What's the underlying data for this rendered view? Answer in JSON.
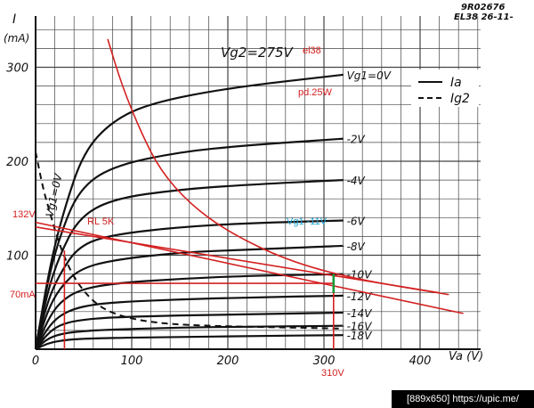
{
  "chart_data": {
    "type": "line",
    "header": {
      "code": "9R02676",
      "sheet": "EL38  26-11-"
    },
    "y_axis": {
      "symbol": "I",
      "unit": "(mA)",
      "ticks": [
        100,
        200,
        300
      ],
      "range": [
        0,
        330
      ]
    },
    "x_axis": {
      "label": "Va (V)",
      "ticks": [
        0,
        100,
        200,
        300,
        400
      ],
      "range": [
        0,
        450
      ]
    },
    "condition": "Vg2=275V",
    "legend": [
      {
        "label": "Ia",
        "style": "solid"
      },
      {
        "label": "Ig2",
        "style": "dashed"
      }
    ],
    "series": [
      {
        "name": "Vg1=0V",
        "points": [
          [
            0,
            0
          ],
          [
            15,
            90
          ],
          [
            30,
            150
          ],
          [
            50,
            210
          ],
          [
            80,
            243
          ],
          [
            120,
            262
          ],
          [
            200,
            278
          ],
          [
            320,
            292
          ]
        ]
      },
      {
        "name": "-2V",
        "points": [
          [
            0,
            0
          ],
          [
            12,
            70
          ],
          [
            25,
            120
          ],
          [
            45,
            170
          ],
          [
            80,
            195
          ],
          [
            150,
            210
          ],
          [
            220,
            217
          ],
          [
            320,
            224
          ]
        ]
      },
      {
        "name": "-4V",
        "points": [
          [
            0,
            0
          ],
          [
            12,
            60
          ],
          [
            25,
            100
          ],
          [
            45,
            140
          ],
          [
            80,
            160
          ],
          [
            150,
            170
          ],
          [
            220,
            175
          ],
          [
            320,
            180
          ]
        ]
      },
      {
        "name": "-6V",
        "points": [
          [
            0,
            0
          ],
          [
            12,
            50
          ],
          [
            25,
            80
          ],
          [
            45,
            110
          ],
          [
            80,
            122
          ],
          [
            150,
            130
          ],
          [
            220,
            134
          ],
          [
            320,
            137
          ]
        ]
      },
      {
        "name": "-8V",
        "points": [
          [
            0,
            0
          ],
          [
            12,
            40
          ],
          [
            25,
            65
          ],
          [
            45,
            85
          ],
          [
            80,
            95
          ],
          [
            150,
            103
          ],
          [
            220,
            106
          ],
          [
            320,
            110
          ]
        ]
      },
      {
        "name": "-10V",
        "points": [
          [
            0,
            0
          ],
          [
            12,
            30
          ],
          [
            25,
            50
          ],
          [
            45,
            63
          ],
          [
            80,
            70
          ],
          [
            150,
            75
          ],
          [
            220,
            78
          ],
          [
            320,
            80
          ]
        ]
      },
      {
        "name": "-12V",
        "points": [
          [
            0,
            0
          ],
          [
            12,
            22
          ],
          [
            25,
            36
          ],
          [
            45,
            45
          ],
          [
            80,
            50
          ],
          [
            150,
            53
          ],
          [
            220,
            55
          ],
          [
            320,
            57
          ]
        ]
      },
      {
        "name": "-14V",
        "points": [
          [
            0,
            0
          ],
          [
            12,
            16
          ],
          [
            25,
            26
          ],
          [
            45,
            31
          ],
          [
            80,
            34
          ],
          [
            150,
            36
          ],
          [
            220,
            37
          ],
          [
            320,
            39
          ]
        ]
      },
      {
        "name": "-16V",
        "points": [
          [
            0,
            0
          ],
          [
            12,
            11
          ],
          [
            25,
            16
          ],
          [
            45,
            19
          ],
          [
            80,
            21
          ],
          [
            150,
            23
          ],
          [
            220,
            24
          ],
          [
            320,
            25
          ]
        ]
      },
      {
        "name": "-18V",
        "points": [
          [
            0,
            0
          ],
          [
            12,
            6
          ],
          [
            25,
            9
          ],
          [
            45,
            11
          ],
          [
            80,
            12
          ],
          [
            150,
            13
          ],
          [
            220,
            14
          ],
          [
            320,
            15
          ]
        ]
      }
    ],
    "ig2_curve": {
      "name": "Vg1=0V",
      "points": [
        [
          0,
          210
        ],
        [
          8,
          170
        ],
        [
          15,
          145
        ],
        [
          25,
          110
        ],
        [
          40,
          75
        ],
        [
          60,
          50
        ],
        [
          80,
          38
        ],
        [
          110,
          30
        ],
        [
          160,
          25
        ],
        [
          320,
          22
        ]
      ]
    },
    "annotations": {
      "tube": "el38",
      "dissipation": "pd.25W",
      "load": "RL 5K",
      "bias": "Vg1 -11V",
      "y_mark_high": "132V",
      "y_mark_low": "70mA",
      "x_mark": "310V"
    },
    "hyperbola_25W": [
      [
        75,
        330
      ],
      [
        90,
        280
      ],
      [
        110,
        230
      ],
      [
        130,
        190
      ],
      [
        160,
        155
      ],
      [
        200,
        125
      ],
      [
        260,
        95
      ],
      [
        330,
        75
      ],
      [
        430,
        58
      ]
    ],
    "load_line": [
      [
        0,
        130
      ],
      [
        420,
        60
      ]
    ],
    "load_line_2": [
      [
        0,
        135
      ],
      [
        445,
        38
      ]
    ],
    "op_h": [
      [
        0,
        70
      ],
      [
        310,
        70
      ]
    ],
    "op_v1": [
      [
        30,
        0
      ],
      [
        30,
        105
      ]
    ],
    "op_v2": [
      [
        310,
        0
      ],
      [
        310,
        80
      ]
    ],
    "swing": [
      [
        310,
        60
      ],
      [
        310,
        80
      ]
    ],
    "grid": true,
    "colors": {
      "ink": "#111111",
      "annotation": "#d42020",
      "bias": "#1aa6d6",
      "swing": "#1a9a3a"
    }
  },
  "footer": {
    "text": "[889x650] https://upic.me/"
  }
}
